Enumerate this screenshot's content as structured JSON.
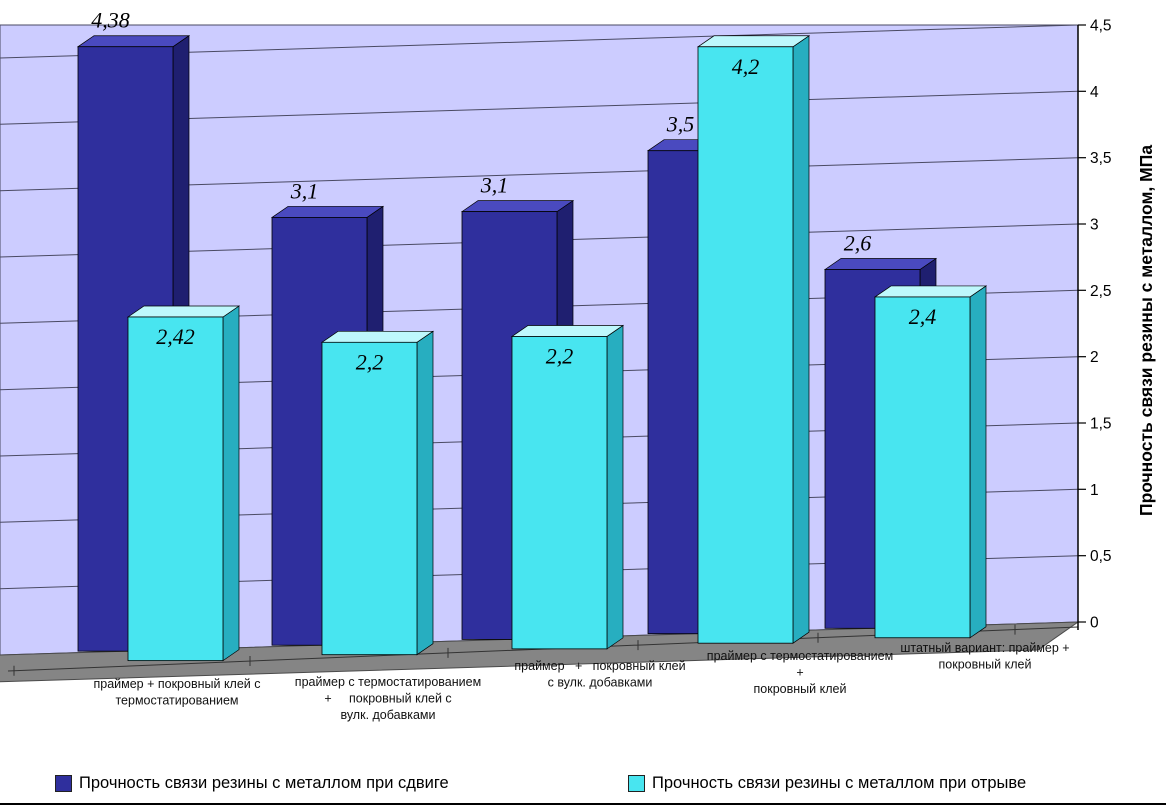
{
  "chart_data": {
    "type": "bar",
    "is_3d": true,
    "ylabel": "Прочность связи резины с металлом, МПа",
    "ylim": [
      0,
      4.5
    ],
    "ytick_step": 0.5,
    "ytick_labels": [
      "4,5",
      "4",
      "3,5",
      "3",
      "2,5",
      "2",
      "1,5",
      "1",
      "0,5",
      "0"
    ],
    "grid": true,
    "legend_position": "bottom",
    "categories": [
      {
        "lines": [
          "праймер + покровный клей с",
          "термостатированием"
        ]
      },
      {
        "lines": [
          "праймер с термостатированием",
          "+     покровный клей с",
          "вулк. добавками"
        ]
      },
      {
        "lines": [
          "праймер   +   покровный клей",
          "с вулк. добавками"
        ]
      },
      {
        "lines": [
          "праймер с термостатированием",
          "+",
          "покровный клей"
        ]
      },
      {
        "lines": [
          "штатный вариант: праймер +",
          "покровный клей"
        ]
      }
    ],
    "series": [
      {
        "name": "Прочность связи резины с металлом при сдвиге",
        "color": "#2F2F9D",
        "color_dark": "#1F1F70",
        "color_light": "#4A4ABF",
        "values": [
          4.38,
          3.1,
          3.1,
          3.5,
          2.6
        ],
        "labels": [
          "4,38",
          "3,1",
          "3,1",
          "3,5",
          "2,6"
        ]
      },
      {
        "name": "Прочность связи резины с металлом при отрыве",
        "color": "#48E5F0",
        "color_dark": "#27AEC0",
        "color_light": "#BEF8FC",
        "values": [
          2.42,
          2.2,
          2.2,
          4.2,
          2.4
        ],
        "labels": [
          "2,42",
          "2,2",
          "2,2",
          "4,2",
          "2,4"
        ]
      }
    ]
  },
  "colors": {
    "wall": "#CCCCFF",
    "floor": "#858585",
    "grid": "#4A4A63",
    "axis": "#000000",
    "text": "#000000"
  }
}
